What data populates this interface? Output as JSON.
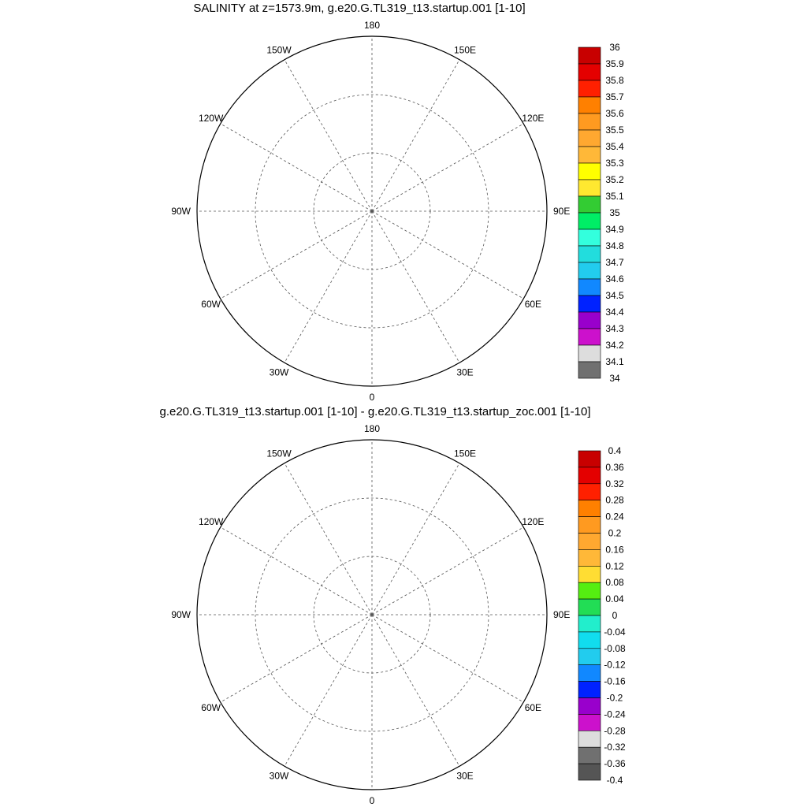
{
  "panels": [
    {
      "title": "SALINITY at z=1573.9m, g.e20.G.TL319_t13.startup.001 [1-10]",
      "colorbar": {
        "labels": [
          "36",
          "35.9",
          "35.8",
          "35.7",
          "35.6",
          "35.5",
          "35.4",
          "35.3",
          "35.2",
          "35.1",
          "35",
          "34.9",
          "34.8",
          "34.7",
          "34.6",
          "34.5",
          "34.4",
          "34.3",
          "34.2",
          "34.1",
          "34"
        ],
        "colors": [
          "#c80000",
          "#e40000",
          "#ff2000",
          "#ff8000",
          "#ff9a20",
          "#ffa830",
          "#ffb838",
          "#ffff00",
          "#ffe830",
          "#33cc33",
          "#00ee66",
          "#33ffdd",
          "#22dddd",
          "#22ccee",
          "#1188ff",
          "#0022ff",
          "#9900cc",
          "#cc11cc",
          "#dddddd",
          "#707070"
        ]
      },
      "lon_labels": [
        "180",
        "150E",
        "120E",
        "90E",
        "60E",
        "30E",
        "0",
        "30W",
        "60W",
        "90W",
        "120W",
        "150W"
      ]
    },
    {
      "title": "g.e20.G.TL319_t13.startup.001 [1-10] - g.e20.G.TL319_t13.startup_zoc.001 [1-10]",
      "colorbar": {
        "labels": [
          "0.4",
          "0.36",
          "0.32",
          "0.28",
          "0.24",
          "0.2",
          "0.16",
          "0.12",
          "0.08",
          "0.04",
          "0",
          "-0.04",
          "-0.08",
          "-0.12",
          "-0.16",
          "-0.2",
          "-0.24",
          "-0.28",
          "-0.32",
          "-0.36",
          "-0.4"
        ],
        "colors": [
          "#c80000",
          "#e40000",
          "#ff2000",
          "#ff8000",
          "#ff9a20",
          "#ffa830",
          "#ffb838",
          "#ffdd33",
          "#55ee11",
          "#22dd55",
          "#22eecc",
          "#11ddee",
          "#22ccee",
          "#1188ff",
          "#0022ff",
          "#9900cc",
          "#cc11cc",
          "#dddddd",
          "#707070",
          "#555555"
        ]
      },
      "lon_labels": [
        "180",
        "150E",
        "120E",
        "90E",
        "60E",
        "30E",
        "0",
        "30W",
        "60W",
        "90W",
        "120W",
        "150W"
      ]
    }
  ],
  "colors": {
    "positive_fill": "#33ffdd",
    "negative_fill": "#22dd55",
    "deep_blue": "#0022ff"
  }
}
